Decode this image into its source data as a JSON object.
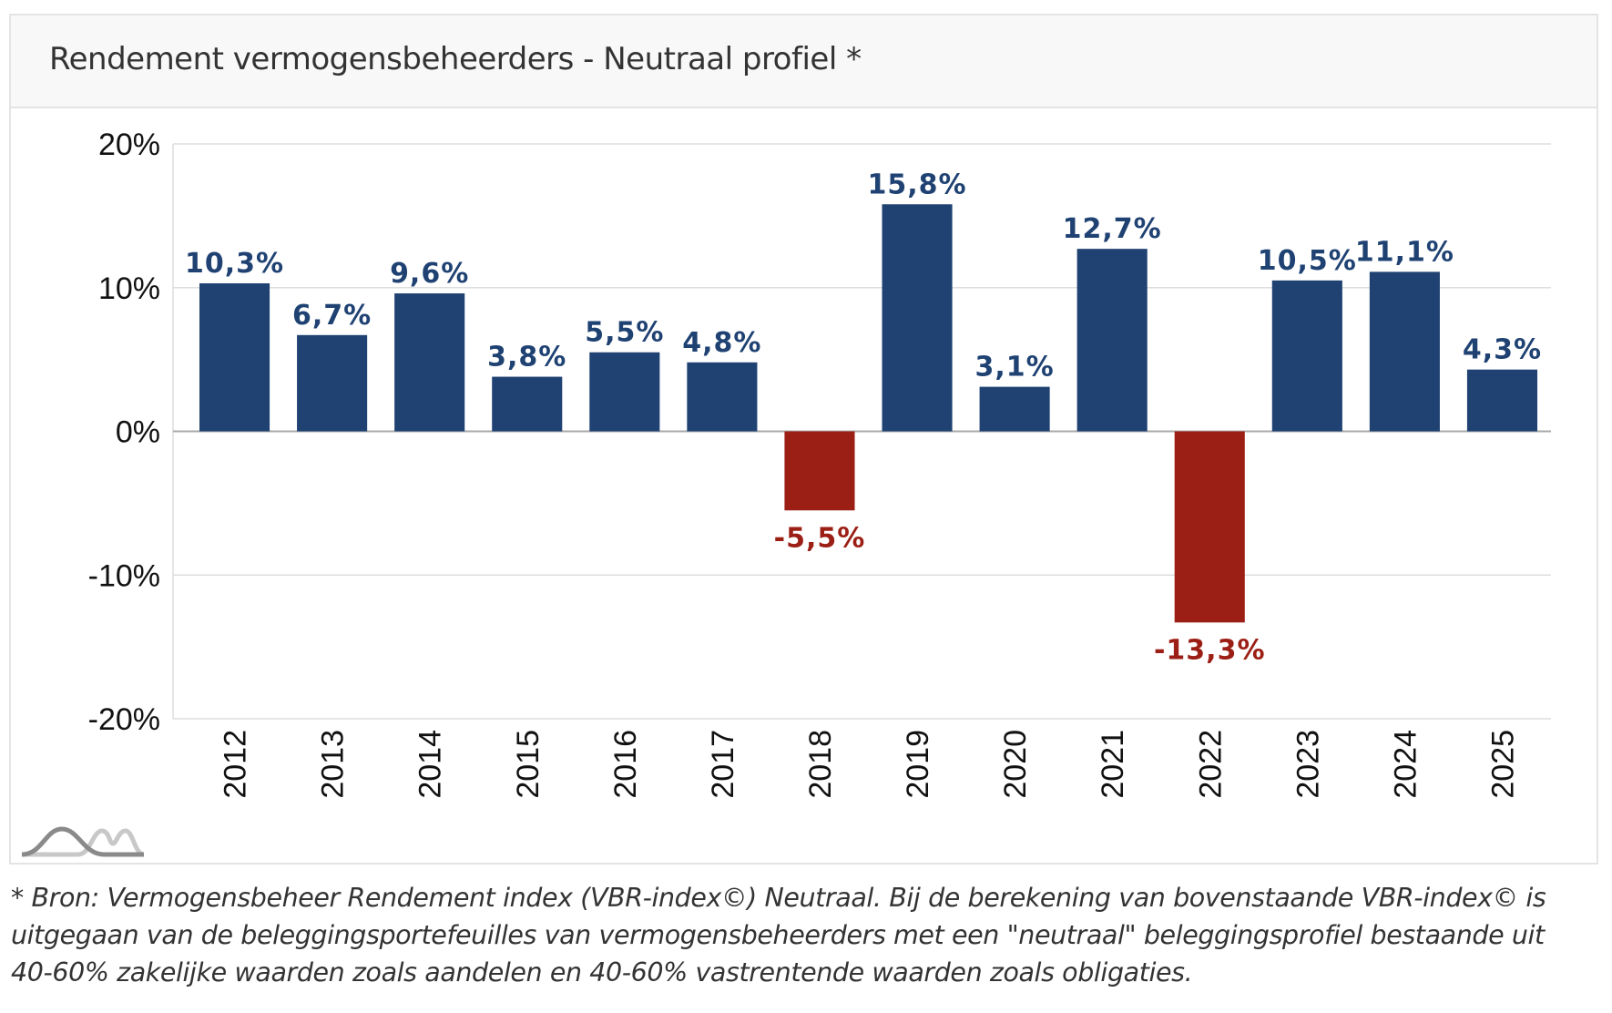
{
  "card": {
    "title": "Rendement vermogensbeheerders - Neutraal profiel *"
  },
  "logo": {
    "icon": "bell-curves-logo-icon"
  },
  "footnote": {
    "lines": [
      "* Bron: Vermogensbeheer Rendement index (VBR-index©) Neutraal. Bij de berekening van bovenstaande VBR-index© is",
      "uitgegaan van de beleggingsportefeuilles van vermogensbeheerders met een \"neutraal\" beleggingsprofiel bestaande uit",
      "40-60% zakelijke waarden zoals aandelen en 40-60% vastrentende waarden zoals obligaties."
    ]
  },
  "colors": {
    "positive": "#1f4273",
    "negative": "#9b1f15",
    "grid": "#dddddd",
    "zero_line": "#aaaaaa"
  },
  "chart_data": {
    "type": "bar",
    "title": "Rendement vermogensbeheerders - Neutraal profiel *",
    "xlabel": "",
    "ylabel": "",
    "categories": [
      "2012",
      "2013",
      "2014",
      "2015",
      "2016",
      "2017",
      "2018",
      "2019",
      "2020",
      "2021",
      "2022",
      "2023",
      "2024",
      "2025"
    ],
    "values": [
      10.3,
      6.7,
      9.6,
      3.8,
      5.5,
      4.8,
      -5.5,
      15.8,
      3.1,
      12.7,
      -13.3,
      10.5,
      11.1,
      4.3
    ],
    "data_labels": [
      "10,3%",
      "6,7%",
      "9,6%",
      "3,8%",
      "5,5%",
      "4,8%",
      "-5,5%",
      "15,8%",
      "3,1%",
      "12,7%",
      "-13,3%",
      "10,5%",
      "11,1%",
      "4,3%"
    ],
    "ylim": [
      -20,
      20
    ],
    "yticks": [
      20,
      10,
      0,
      -10,
      -20
    ],
    "ytick_labels": [
      "20%",
      "10%",
      "0%",
      "-10%",
      "-20%"
    ],
    "grid": true,
    "legend": "none",
    "x_tick_rotation": "vertical"
  }
}
